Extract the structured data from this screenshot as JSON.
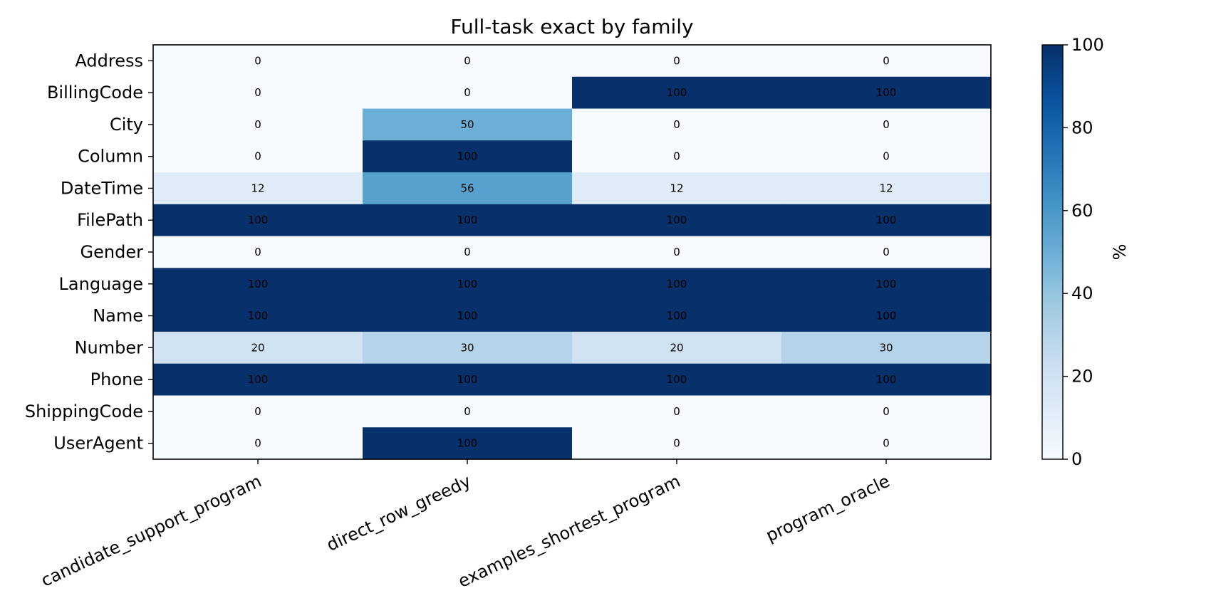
{
  "chart_data": {
    "type": "heatmap",
    "title": "Full-task exact by family",
    "rows": [
      "Address",
      "BillingCode",
      "City",
      "Column",
      "DateTime",
      "FilePath",
      "Gender",
      "Language",
      "Name",
      "Number",
      "Phone",
      "ShippingCode",
      "UserAgent"
    ],
    "columns": [
      "candidate_support_program",
      "direct_row_greedy",
      "examples_shortest_program",
      "program_oracle"
    ],
    "values": [
      [
        0,
        0,
        0,
        0
      ],
      [
        0,
        0,
        100,
        100
      ],
      [
        0,
        50,
        0,
        0
      ],
      [
        0,
        100,
        0,
        0
      ],
      [
        12,
        56,
        12,
        12
      ],
      [
        100,
        100,
        100,
        100
      ],
      [
        0,
        0,
        0,
        0
      ],
      [
        100,
        100,
        100,
        100
      ],
      [
        100,
        100,
        100,
        100
      ],
      [
        20,
        30,
        20,
        30
      ],
      [
        100,
        100,
        100,
        100
      ],
      [
        0,
        0,
        0,
        0
      ],
      [
        0,
        100,
        0,
        0
      ]
    ],
    "colormap": "Blues",
    "colorbar": {
      "label": "%",
      "range": [
        0,
        100
      ],
      "ticks": [
        0,
        20,
        40,
        60,
        80,
        100
      ]
    },
    "grid": false
  }
}
